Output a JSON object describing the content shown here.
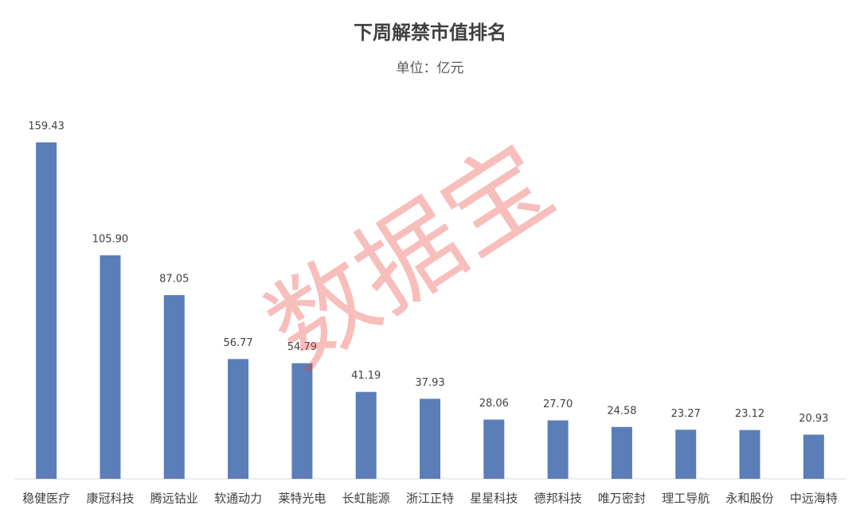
{
  "chart_data": {
    "type": "bar",
    "title": "下周解禁市值排名",
    "subtitle": "单位：亿元",
    "categories": [
      "稳健医疗",
      "康冠科技",
      "腾远钴业",
      "软通动力",
      "莱特光电",
      "长虹能源",
      "浙江正特",
      "星星科技",
      "德邦科技",
      "唯万密封",
      "理工导航",
      "永和股份",
      "中远海特"
    ],
    "values": [
      159.43,
      105.9,
      87.05,
      56.77,
      54.79,
      41.19,
      37.93,
      28.06,
      27.7,
      24.58,
      23.27,
      23.12,
      20.93
    ],
    "value_labels": [
      "159.43",
      "105.90",
      "87.05",
      "56.77",
      "54.79",
      "41.19",
      "37.93",
      "28.06",
      "27.70",
      "24.58",
      "23.27",
      "23.12",
      "20.93"
    ],
    "color": "#5b7eb8",
    "watermark": "数据宝"
  }
}
